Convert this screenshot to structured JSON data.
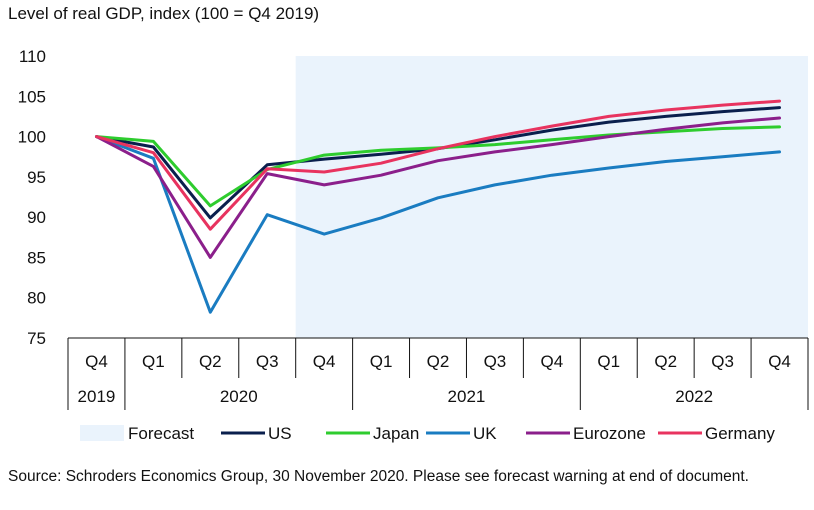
{
  "title": "Level of real GDP, index (100 = Q4 2019)",
  "source": "Source: Schroders Economics Group, 30 November 2020. Please see forecast warning at end of document.",
  "chart_data": {
    "type": "line",
    "title": "Level of real GDP, index (100 = Q4 2019)",
    "ylim": [
      75,
      110
    ],
    "y_ticks": [
      75,
      80,
      85,
      90,
      95,
      100,
      105,
      110
    ],
    "quarters": [
      "Q4",
      "Q1",
      "Q2",
      "Q3",
      "Q4",
      "Q1",
      "Q2",
      "Q3",
      "Q4",
      "Q1",
      "Q2",
      "Q3",
      "Q4"
    ],
    "years": [
      {
        "label": "2019",
        "count": 1
      },
      {
        "label": "2020",
        "count": 4
      },
      {
        "label": "2021",
        "count": 4
      },
      {
        "label": "2022",
        "count": 4
      }
    ],
    "forecast_shading": {
      "label": "Forecast",
      "color": "#eaf3fc",
      "from_index": 3.5,
      "to_index": 12
    },
    "grid": false,
    "legend_position": "bottom",
    "series": [
      {
        "name": "US",
        "color": "#0a1f4d",
        "values": [
          100,
          98.7,
          89.9,
          96.5,
          97.2,
          97.8,
          98.5,
          99.6,
          100.8,
          101.8,
          102.5,
          103.1,
          103.6
        ]
      },
      {
        "name": "Japan",
        "color": "#2ecc2e",
        "values": [
          100,
          99.4,
          91.4,
          95.9,
          97.7,
          98.3,
          98.6,
          99.0,
          99.6,
          100.2,
          100.6,
          101.0,
          101.2
        ]
      },
      {
        "name": "UK",
        "color": "#1a7cc1",
        "values": [
          100,
          97.3,
          78.2,
          90.3,
          87.9,
          89.9,
          92.4,
          94.0,
          95.2,
          96.1,
          96.9,
          97.5,
          98.1
        ]
      },
      {
        "name": "Eurozone",
        "color": "#8b1f8b",
        "values": [
          100,
          96.3,
          85.0,
          95.4,
          94.0,
          95.2,
          97.0,
          98.1,
          99.0,
          100.0,
          100.9,
          101.7,
          102.3
        ]
      },
      {
        "name": "Germany",
        "color": "#e8335f",
        "values": [
          100,
          98.0,
          88.5,
          96.0,
          95.6,
          96.7,
          98.5,
          100.0,
          101.3,
          102.5,
          103.3,
          103.9,
          104.4
        ]
      }
    ]
  }
}
